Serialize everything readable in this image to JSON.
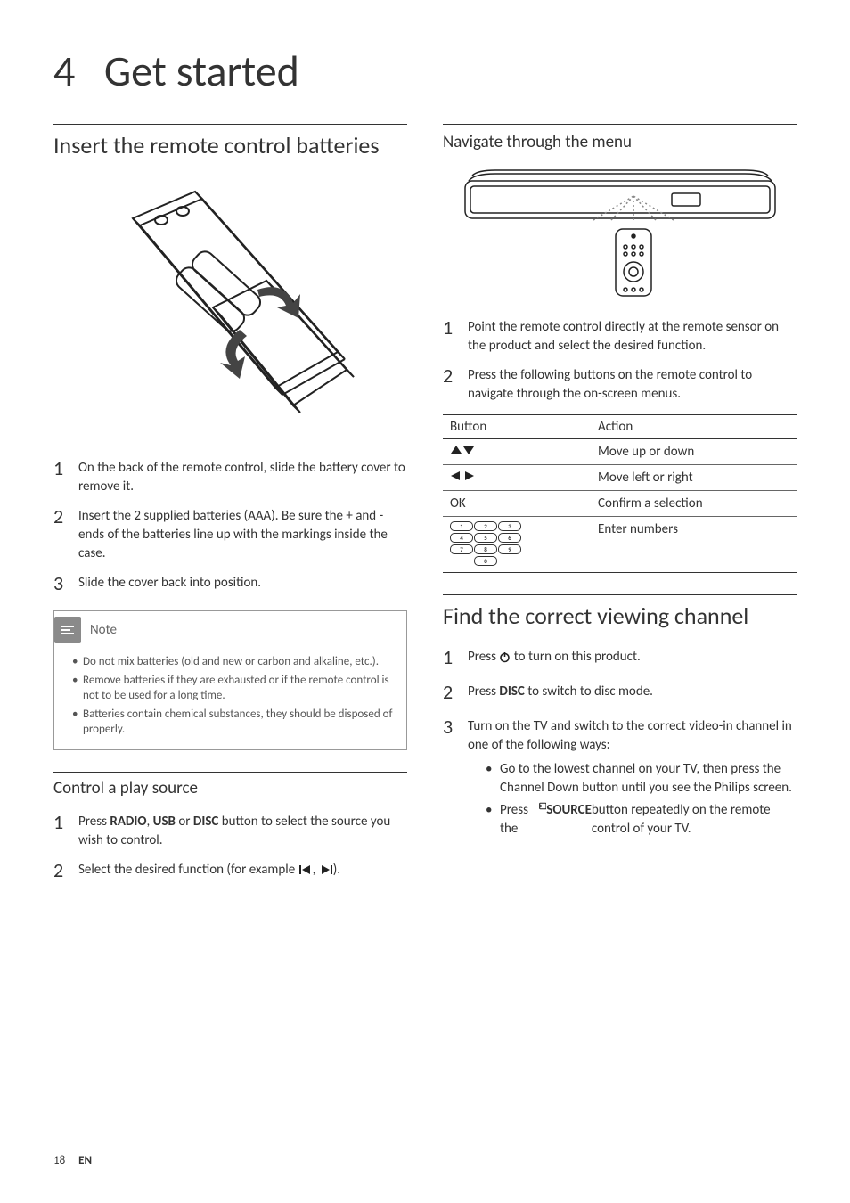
{
  "chapter": {
    "number": "4",
    "title": "Get started"
  },
  "left": {
    "section1": {
      "title": "Insert the remote control batteries",
      "steps": [
        "On the back of the remote control, slide the battery cover to remove it.",
        "Insert the 2 supplied batteries (AAA). Be sure the + and - ends of the batteries line up with the markings inside the case.",
        "Slide the cover back into position."
      ],
      "note_label": "Note",
      "notes": [
        "Do not mix batteries (old and new or carbon and alkaline, etc.).",
        "Remove batteries if they are exhausted or if the remote control is not to be used for a long time.",
        "Batteries contain chemical substances, they should be disposed of properly."
      ]
    },
    "section2": {
      "title": "Control a play source",
      "step1_pre": "Press ",
      "step1_b1": "RADIO",
      "step1_sep1": ", ",
      "step1_b2": "USB",
      "step1_sep2": " or ",
      "step1_b3": "DISC",
      "step1_post": " button to select the source you wish to control.",
      "step2": "Select the desired function (for example "
    }
  },
  "right": {
    "section1": {
      "title": "Navigate through the menu",
      "steps": [
        "Point the remote control directly at the remote sensor on the product and select the desired function.",
        "Press the following buttons on the remote control to navigate through the on-screen menus."
      ],
      "table": {
        "headers": [
          "Button",
          "Action"
        ],
        "rows": [
          {
            "button_type": "updown",
            "action": "Move up or down"
          },
          {
            "button_type": "leftright",
            "action": "Move left or right"
          },
          {
            "button_type": "ok",
            "button_text": "OK",
            "action": "Confirm a selection"
          },
          {
            "button_type": "keypad",
            "action": "Enter numbers"
          }
        ],
        "keypad": [
          [
            "1",
            "2",
            "3"
          ],
          [
            "4",
            "5",
            "6"
          ],
          [
            "7",
            "8",
            "9"
          ],
          [
            "0"
          ]
        ]
      }
    },
    "section2": {
      "title": "Find the correct viewing channel",
      "step1_pre": "Press ",
      "step1_post": " to turn on this product.",
      "step2_pre": "Press ",
      "step2_bold": "DISC",
      "step2_post": " to switch to disc mode.",
      "step3": "Turn on the TV and switch to the correct video-in channel in one of the following ways:",
      "bullets": {
        "b1": "Go to the lowest channel on your TV, then press the Channel Down button until you see the Philips screen.",
        "b2_pre": "Press the ",
        "b2_bold": "SOURCE",
        "b2_post": " button repeatedly on the remote control of your TV."
      }
    }
  },
  "footer": {
    "page": "18",
    "lang": "EN"
  },
  "colors": {
    "text": "#333333",
    "note_border": "#999999",
    "note_icon_bg": "#8a8a8a",
    "rule": "#333333"
  }
}
